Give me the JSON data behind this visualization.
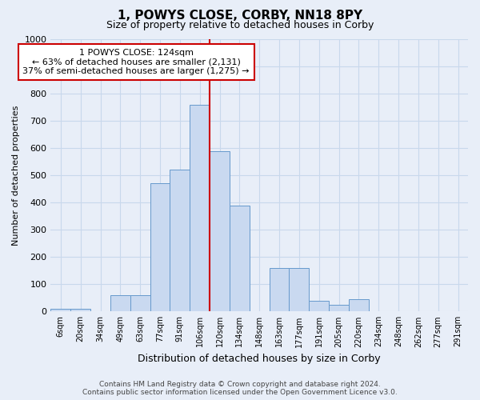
{
  "title": "1, POWYS CLOSE, CORBY, NN18 8PY",
  "subtitle": "Size of property relative to detached houses in Corby",
  "xlabel": "Distribution of detached houses by size in Corby",
  "ylabel": "Number of detached properties",
  "categories": [
    "6sqm",
    "20sqm",
    "34sqm",
    "49sqm",
    "63sqm",
    "77sqm",
    "91sqm",
    "106sqm",
    "120sqm",
    "134sqm",
    "148sqm",
    "163sqm",
    "177sqm",
    "191sqm",
    "205sqm",
    "220sqm",
    "234sqm",
    "248sqm",
    "262sqm",
    "277sqm",
    "291sqm"
  ],
  "values": [
    10,
    10,
    0,
    60,
    60,
    470,
    520,
    760,
    590,
    390,
    0,
    160,
    160,
    40,
    25,
    45,
    0,
    0,
    0,
    0,
    0
  ],
  "bar_color": "#c9d9f0",
  "bar_edge_color": "#6699cc",
  "highlight_index": 8,
  "highlight_line_color": "#cc0000",
  "ylim_max": 1000,
  "yticks": [
    0,
    100,
    200,
    300,
    400,
    500,
    600,
    700,
    800,
    900,
    1000
  ],
  "annotation_text": "1 POWYS CLOSE: 124sqm\n← 63% of detached houses are smaller (2,131)\n37% of semi-detached houses are larger (1,275) →",
  "annotation_box_bg": "#ffffff",
  "annotation_box_edge": "#cc0000",
  "grid_color": "#c8d8ec",
  "bg_color": "#e8eef8",
  "footer_line1": "Contains HM Land Registry data © Crown copyright and database right 2024.",
  "footer_line2": "Contains public sector information licensed under the Open Government Licence v3.0.",
  "title_fontsize": 11,
  "subtitle_fontsize": 9,
  "xlabel_fontsize": 9,
  "ylabel_fontsize": 8,
  "tick_fontsize": 7,
  "footer_fontsize": 6.5,
  "ann_fontsize": 8
}
